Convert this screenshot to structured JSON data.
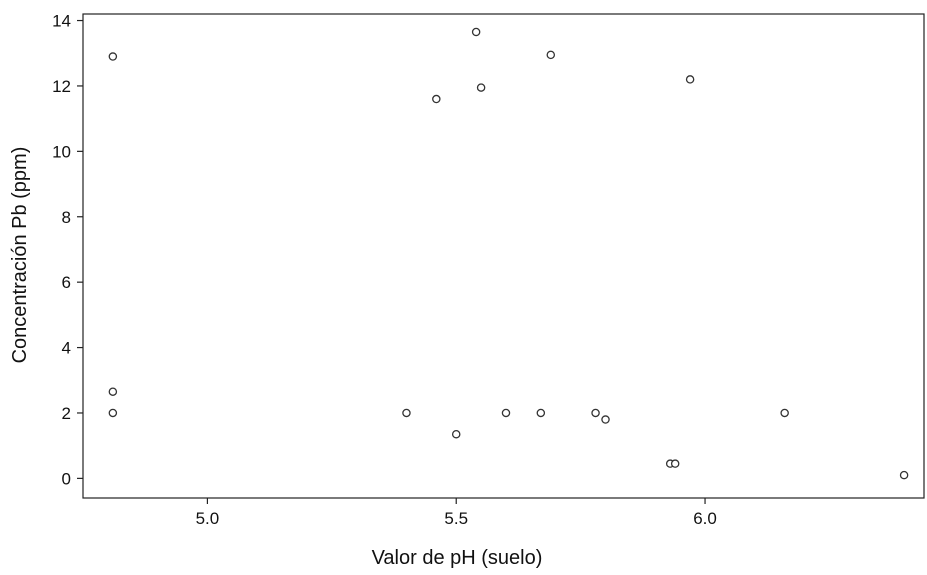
{
  "chart_data": {
    "type": "scatter",
    "title": "",
    "xlabel": "Valor de pH (suelo)",
    "ylabel": "Concentración Pb (ppm)",
    "xlim": [
      4.75,
      6.44
    ],
    "ylim": [
      -0.6,
      14.2
    ],
    "xticks": [
      5.0,
      5.5,
      6.0
    ],
    "xtick_labels": [
      "5.0",
      "5.5",
      "6.0"
    ],
    "yticks": [
      0,
      2,
      4,
      6,
      8,
      10,
      12,
      14
    ],
    "ytick_labels": [
      "0",
      "2",
      "4",
      "6",
      "8",
      "10",
      "12",
      "14"
    ],
    "grid": false,
    "marker": "hollow-circle",
    "points": [
      {
        "x": 4.81,
        "y": 12.9
      },
      {
        "x": 4.81,
        "y": 2.65
      },
      {
        "x": 4.81,
        "y": 2.0
      },
      {
        "x": 5.4,
        "y": 2.0
      },
      {
        "x": 5.46,
        "y": 11.6
      },
      {
        "x": 5.5,
        "y": 1.35
      },
      {
        "x": 5.54,
        "y": 13.65
      },
      {
        "x": 5.55,
        "y": 11.95
      },
      {
        "x": 5.6,
        "y": 2.0
      },
      {
        "x": 5.67,
        "y": 2.0
      },
      {
        "x": 5.69,
        "y": 12.95
      },
      {
        "x": 5.78,
        "y": 2.0
      },
      {
        "x": 5.8,
        "y": 1.8
      },
      {
        "x": 5.93,
        "y": 0.45
      },
      {
        "x": 5.94,
        "y": 0.45
      },
      {
        "x": 5.97,
        "y": 12.2
      },
      {
        "x": 6.16,
        "y": 2.0
      },
      {
        "x": 6.4,
        "y": 0.1
      }
    ]
  }
}
